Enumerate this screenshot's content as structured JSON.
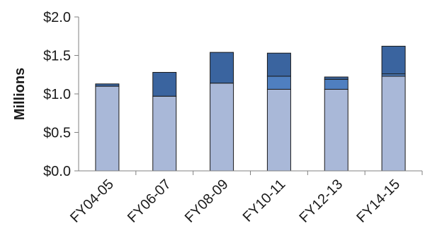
{
  "chart_data": {
    "type": "bar",
    "stacked": true,
    "title": "",
    "xlabel": "",
    "ylabel": "Millions",
    "ylim": [
      0,
      2.0
    ],
    "yticks": [
      0,
      0.5,
      1.0,
      1.5,
      2.0
    ],
    "ytick_labels": [
      "$0.0",
      "$0.5",
      "$1.0",
      "$1.5",
      "$2.0"
    ],
    "categories": [
      "FY04-05",
      "FY06-07",
      "FY08-09",
      "FY10-11",
      "FY12-13",
      "FY14-15"
    ],
    "series": [
      {
        "color": "#a9b8d8",
        "values": [
          1.1,
          0.97,
          1.14,
          1.06,
          1.06,
          1.23
        ]
      },
      {
        "color": "#4f7fc0",
        "values": [
          0.0,
          0.0,
          0.0,
          0.17,
          0.13,
          0.03
        ]
      },
      {
        "color": "#3a649f",
        "values": [
          0.03,
          0.31,
          0.4,
          0.3,
          0.03,
          0.36
        ]
      }
    ],
    "grid": false,
    "legend": "none"
  }
}
